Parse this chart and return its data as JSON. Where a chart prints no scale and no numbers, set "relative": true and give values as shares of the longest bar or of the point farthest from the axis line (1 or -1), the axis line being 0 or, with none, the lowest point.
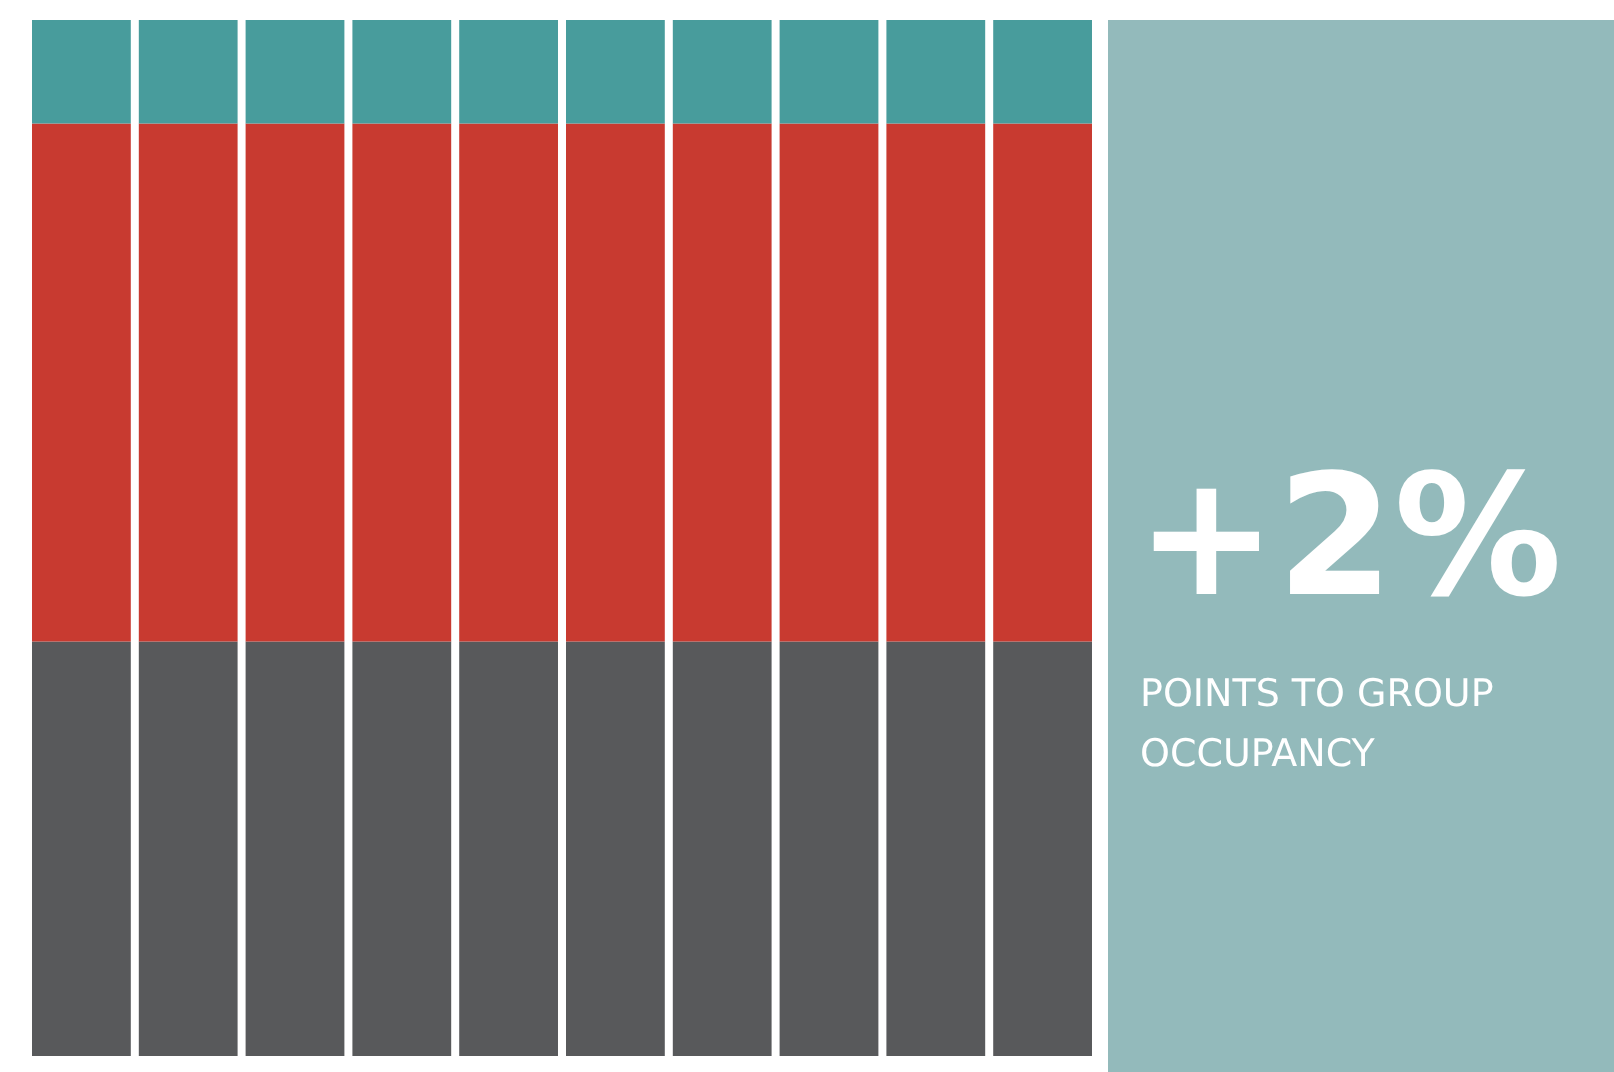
{
  "chart_data": {
    "type": "bar",
    "stacked": true,
    "relative": true,
    "categories": [
      null,
      null,
      null,
      null,
      null,
      null,
      null,
      null,
      null,
      null
    ],
    "series": [
      {
        "color": "#58595b",
        "values": [
          0.4,
          0.4,
          0.4,
          0.4,
          0.4,
          0.4,
          0.4,
          0.4,
          0.4,
          0.4
        ]
      },
      {
        "color": "#c83a30",
        "values": [
          0.5,
          0.5,
          0.5,
          0.5,
          0.5,
          0.5,
          0.5,
          0.5,
          0.5,
          0.5
        ]
      },
      {
        "color": "#489c9c",
        "values": [
          0.1,
          0.1,
          0.1,
          0.1,
          0.1,
          0.1,
          0.1,
          0.1,
          0.1,
          0.1
        ]
      }
    ],
    "annotations": [
      "+2%",
      "POINTS TO GROUP OCCUPANCY"
    ]
  }
}
